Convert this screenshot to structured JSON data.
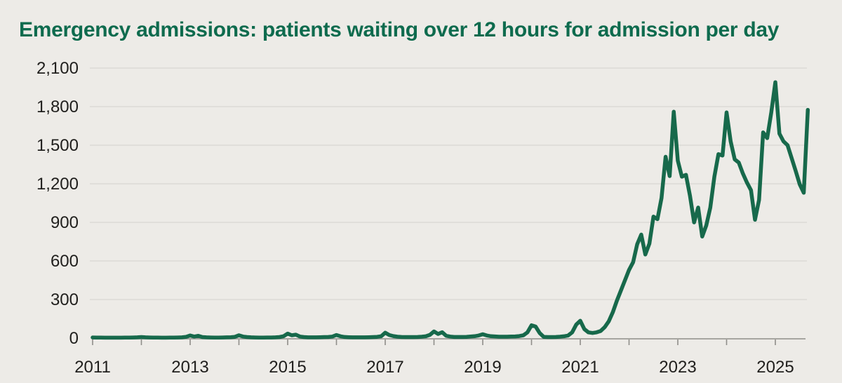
{
  "title": "Emergency admissions: patients waiting over 12 hours for admission per day",
  "colors": {
    "background": "#edebe7",
    "title_green": "#0e6b4e",
    "line_green": "#17694b",
    "gridline": "#dcdad5",
    "axis": "#a6a5a0",
    "tick": "#8f8e8a",
    "tick_label": "#201f1d"
  },
  "chart_data": {
    "type": "line",
    "title": "Emergency admissions: patients waiting over 12 hours for admission per day",
    "xlabel": "",
    "ylabel": "",
    "unit": "patients per day",
    "frequency": "monthly",
    "x_start": "2011-01",
    "x_end": "2025-09",
    "ylim": [
      0,
      2100
    ],
    "y_ticks": [
      0,
      300,
      600,
      900,
      1200,
      1500,
      1800,
      2100
    ],
    "y_tick_labels": [
      "0",
      "300",
      "600",
      "900",
      "1,200",
      "1,500",
      "1,800",
      "2,100"
    ],
    "x_ticks_years": [
      2011,
      2012,
      2013,
      2014,
      2015,
      2016,
      2017,
      2018,
      2019,
      2020,
      2021,
      2022,
      2023,
      2024,
      2025
    ],
    "x_tick_labels_shown": [
      "2011",
      "2013",
      "2015",
      "2017",
      "2019",
      "2021",
      "2023",
      "2025"
    ],
    "grid": "horizontal",
    "legend": "none",
    "series": [
      {
        "name": "Patients waiting over 12 hours for admission per day",
        "values": [
          5,
          4,
          4,
          3,
          3,
          3,
          3,
          3,
          4,
          4,
          5,
          6,
          8,
          6,
          5,
          4,
          4,
          3,
          3,
          4,
          4,
          5,
          6,
          10,
          20,
          12,
          18,
          8,
          6,
          5,
          4,
          4,
          5,
          6,
          7,
          10,
          22,
          12,
          8,
          6,
          5,
          4,
          4,
          5,
          5,
          6,
          8,
          15,
          35,
          22,
          27,
          12,
          8,
          6,
          6,
          6,
          7,
          8,
          9,
          12,
          24,
          14,
          9,
          7,
          6,
          6,
          6,
          6,
          7,
          8,
          10,
          14,
          42,
          24,
          16,
          11,
          9,
          8,
          8,
          8,
          9,
          11,
          14,
          25,
          52,
          32,
          46,
          18,
          12,
          9,
          9,
          9,
          10,
          12,
          15,
          20,
          30,
          20,
          15,
          13,
          11,
          11,
          11,
          12,
          13,
          16,
          22,
          45,
          100,
          90,
          40,
          10,
          8,
          8,
          9,
          11,
          14,
          20,
          45,
          105,
          135,
          70,
          45,
          40,
          45,
          55,
          85,
          130,
          200,
          290,
          370,
          450,
          530,
          590,
          730,
          805,
          650,
          735,
          945,
          925,
          1090,
          1410,
          1260,
          1760,
          1380,
          1255,
          1270,
          1105,
          900,
          1015,
          790,
          875,
          1015,
          1255,
          1430,
          1420,
          1755,
          1530,
          1390,
          1365,
          1280,
          1210,
          1150,
          920,
          1075,
          1600,
          1555,
          1755,
          1990,
          1590,
          1530,
          1500,
          1400,
          1300,
          1195,
          1130,
          1775
        ]
      }
    ]
  }
}
